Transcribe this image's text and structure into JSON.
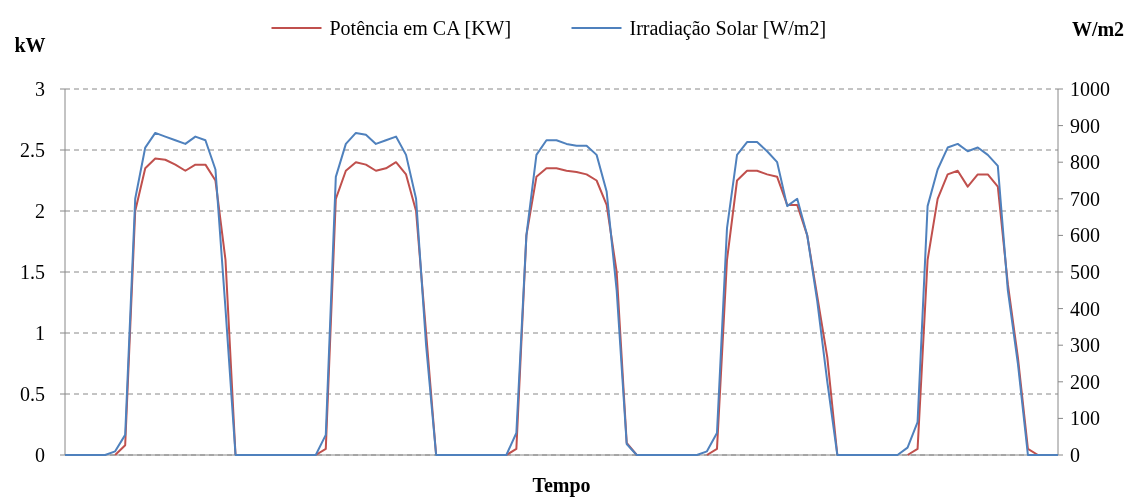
{
  "chart_data": {
    "type": "line",
    "xlabel": "Tempo",
    "ylabel": "kW",
    "y2label": "W/m2",
    "categories": [
      null,
      null,
      null,
      null,
      null,
      null,
      null,
      null,
      null,
      null,
      null,
      null,
      null,
      null,
      null,
      null,
      null,
      null,
      null,
      null,
      null,
      null,
      null,
      null,
      null,
      null,
      null,
      null,
      null,
      null,
      null,
      null,
      null,
      null,
      null,
      null,
      null,
      null,
      null,
      null,
      null,
      null,
      null,
      null,
      null,
      null,
      null,
      null,
      null,
      null,
      null,
      null,
      null,
      null,
      null,
      null,
      null,
      null,
      null,
      null,
      null,
      null,
      null,
      null,
      null,
      null,
      null,
      null,
      null,
      null,
      null,
      null,
      null,
      null,
      null,
      null,
      null,
      null,
      null,
      null,
      null,
      null,
      null,
      null,
      null,
      null,
      null,
      null,
      null,
      null,
      null,
      null,
      null,
      null,
      null,
      null,
      null,
      null,
      null,
      null
    ],
    "series": [
      {
        "name": "Potência em CA  [KW]",
        "color": "#c0504d",
        "axis": "y",
        "values": [
          null,
          null,
          null,
          null,
          null,
          0,
          0.08,
          2.0,
          2.35,
          2.43,
          2.42,
          2.38,
          2.33,
          2.38,
          2.38,
          2.25,
          1.6,
          0,
          null,
          null,
          null,
          null,
          null,
          null,
          null,
          0,
          0.05,
          2.1,
          2.33,
          2.4,
          2.38,
          2.33,
          2.35,
          2.4,
          2.3,
          2.0,
          1.0,
          0,
          null,
          null,
          null,
          null,
          null,
          null,
          0,
          0.05,
          1.8,
          2.28,
          2.35,
          2.35,
          2.33,
          2.32,
          2.3,
          2.25,
          2.05,
          1.5,
          0.1,
          0,
          null,
          null,
          null,
          null,
          null,
          null,
          0,
          0.05,
          1.6,
          2.25,
          2.33,
          2.33,
          2.3,
          2.28,
          2.05,
          2.05,
          1.8,
          1.3,
          0.8,
          0,
          null,
          null,
          null,
          null,
          null,
          null,
          0,
          0.05,
          1.6,
          2.1,
          2.3,
          2.33,
          2.2,
          2.3,
          2.3,
          2.2,
          1.4,
          0.8,
          0.05,
          0,
          null,
          null
        ]
      },
      {
        "name": "Irradiação Solar [W/m2]",
        "color": "#4f81bd",
        "axis": "y2",
        "values": [
          0,
          0,
          0,
          0,
          0,
          10,
          55,
          700,
          840,
          880,
          870,
          860,
          850,
          870,
          860,
          780,
          400,
          0,
          0,
          0,
          0,
          0,
          0,
          0,
          0,
          0,
          55,
          760,
          850,
          880,
          875,
          850,
          860,
          870,
          820,
          700,
          300,
          0,
          0,
          0,
          0,
          0,
          0,
          0,
          0,
          60,
          600,
          820,
          860,
          860,
          850,
          845,
          845,
          820,
          720,
          450,
          30,
          0,
          0,
          0,
          0,
          0,
          0,
          0,
          10,
          60,
          620,
          820,
          855,
          855,
          830,
          800,
          680,
          700,
          600,
          420,
          200,
          0,
          0,
          0,
          0,
          0,
          0,
          0,
          20,
          90,
          680,
          780,
          840,
          850,
          830,
          840,
          820,
          790,
          450,
          250,
          0,
          0,
          0,
          0
        ]
      }
    ],
    "ylim": [
      0,
      3
    ],
    "yticks": [
      0,
      {
        "value": 0.5,
        "label": "0.5"
      },
      1,
      {
        "value": 1.5,
        "label": "1.5"
      },
      2,
      {
        "value": 2.5,
        "label": "2.5"
      },
      3
    ],
    "y2lim": [
      0,
      1000
    ],
    "y2ticks": [
      0,
      100,
      200,
      300,
      400,
      500,
      600,
      700,
      800,
      900,
      1000
    ],
    "grid": "y",
    "legend": "top"
  }
}
